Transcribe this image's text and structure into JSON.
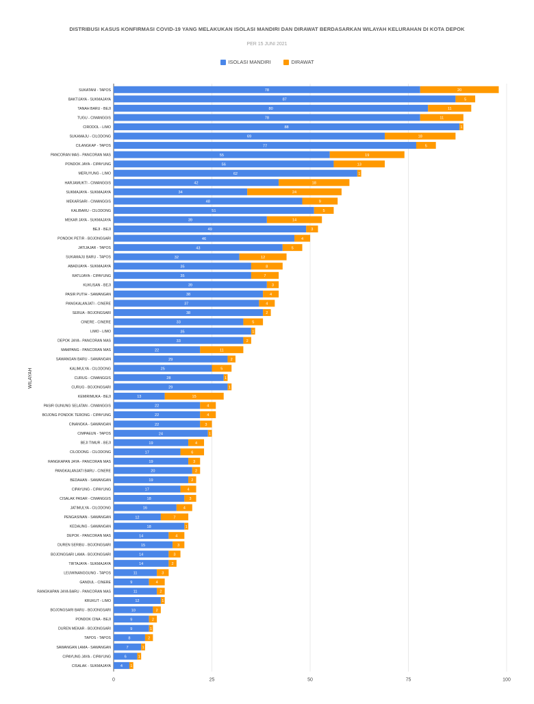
{
  "chart_data": {
    "type": "bar",
    "orientation": "horizontal",
    "stacked": true,
    "title": "DISTRIBUSI KASUS KONFIRMASI COVID-19 YANG MELAKUKAN ISOLASI MANDIRI DAN DIRAWAT BERDASARKAN WILAYAH KELURAHAN DI KOTA DEPOK",
    "subtitle": "PER 15 JUNI 2021",
    "ylabel": "WILAYAH",
    "xlabel": "",
    "xlim": [
      0,
      100
    ],
    "xticks": [
      0,
      25,
      50,
      75,
      100
    ],
    "grid": true,
    "legend_position": "top-center",
    "series_colors": [
      "#4a86e8",
      "#ff9900"
    ],
    "categories": [
      "SUKATANI - TAPOS",
      "BAKTIJAYA - SUKMAJAYA",
      "TANAH BARU - BEJI",
      "TUGU - CIMANGGIS",
      "CIRODOL - LIMO",
      "SUKAMAJU - CILODONG",
      "CILANGKAP - TAPOS",
      "PANCORAN MAS - PANCORAN MAS",
      "PONDOK JAYA - CIPAYUNG",
      "MERUYUNG - LIMO",
      "HARJAMUKTI - CIMANGGIS",
      "SUKMAJAYA - SUKMAJAYA",
      "MEKARSARI - CIMANGGIS",
      "KALIBARU - CILODONG",
      "MEKAR JAYA - SUKMAJAYA",
      "BEJI - BEJI",
      "PONDOK PETIR - BOJONGSARI",
      "JATIJAJAR - TAPOS",
      "SUKAMAJU BARU - TAPOS",
      "ABADIJAYA - SUKMAJAYA",
      "RATUJAYA - CIPAYUNG",
      "KUKUSAN - BEJI",
      "PASIR PUTIH - SAWANGAN",
      "PANGKALANJATI - CINERE",
      "SERUA - BOJONGSARI",
      "CINERE - CINERE",
      "LIMO - LIMO",
      "DEPOK JAYA - PANCORAN MAS",
      "MAMPANG - PANCORAN MAS",
      "SAWANGAN BARU - SAWANGAN",
      "KALIMULYA - CILODONG",
      "CURUG - CIMANGGIS",
      "CURUG - BOJONGSARI",
      "KEMIRIMUKA - BEJI",
      "PASIR GUNUNG SELATAN - CIMANGGIS",
      "BOJONG PONDOK TERONG - CIPAYUNG",
      "CINANGKA - SAWANGAN",
      "CIMPAEUN - TAPOS",
      "BEJI TIMUR - BEJI",
      "CILODONG - CILODONG",
      "RANGKAPAN JAYA - PANCORAN MAS",
      "PANGKALANJATI BARU - CINERE",
      "BEDAHAN - SAWANGAN",
      "CIPAYUNG - CIPAYUNG",
      "CISALAK PASAR - CIMANGGIS",
      "JATIMULYA - CILODONG",
      "PENGASINAN - SAWANGAN",
      "KEDAUNG - SAWANGAN",
      "DEPOK - PANCORAN MAS",
      "DUREN SERIBU - BOJONGSARI",
      "BOJONGSARI LAMA - BOJONGSARI",
      "TIRTAJAYA - SUKMAJAYA",
      "LEUWINANGGUNG - TAPOS",
      "GANDUL - CINERE",
      "RANGKAPAN JAYA BARU - PANCORAN MAS",
      "KRUKUT - LIMO",
      "BOJONGSARI BARU - BOJONGSARI",
      "PONDOK CINA - BEJI",
      "DUREN MEKAR - BOJONGSARI",
      "TAPOS - TAPOS",
      "SAWANGAN LAMA - SAWANGAN",
      "CIPAYUNG JAYA - CIPAYUNG",
      "CISALAK - SUKMAJAYA"
    ],
    "series": [
      {
        "name": "ISOLASI MANDIRI",
        "values": [
          78,
          87,
          80,
          78,
          88,
          69,
          77,
          55,
          56,
          62,
          42,
          34,
          48,
          51,
          39,
          49,
          46,
          43,
          32,
          35,
          35,
          39,
          38,
          37,
          38,
          33,
          35,
          33,
          22,
          29,
          25,
          28,
          29,
          13,
          22,
          22,
          22,
          24,
          19,
          17,
          19,
          20,
          19,
          17,
          18,
          16,
          12,
          18,
          14,
          15,
          14,
          14,
          11,
          9,
          11,
          12,
          10,
          9,
          9,
          8,
          7,
          6,
          4
        ]
      },
      {
        "name": "DIRAWAT",
        "values": [
          20,
          5,
          11,
          11,
          1,
          18,
          5,
          19,
          13,
          1,
          18,
          24,
          9,
          5,
          14,
          3,
          4,
          5,
          12,
          8,
          7,
          3,
          4,
          4,
          2,
          5,
          1,
          2,
          11,
          2,
          5,
          1,
          1,
          15,
          4,
          4,
          3,
          1,
          4,
          6,
          3,
          2,
          2,
          4,
          3,
          4,
          7,
          1,
          4,
          3,
          3,
          2,
          3,
          4,
          2,
          1,
          2,
          2,
          1,
          2,
          1,
          1,
          1
        ]
      }
    ]
  }
}
